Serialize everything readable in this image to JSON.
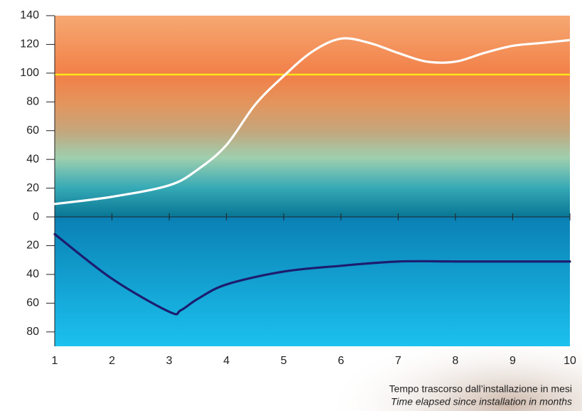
{
  "chart_data": {
    "type": "line",
    "xlim": [
      1,
      10
    ],
    "xticks": [
      1,
      2,
      3,
      4,
      5,
      6,
      7,
      8,
      9,
      10
    ],
    "ylim": [
      -90,
      140
    ],
    "yticks": [
      140,
      120,
      100,
      80,
      60,
      40,
      20,
      0,
      {
        "value": -20,
        "label": "20"
      },
      {
        "value": -40,
        "label": "40"
      },
      {
        "value": -60,
        "label": "60"
      },
      {
        "value": -80,
        "label": "80"
      }
    ],
    "reference_line": {
      "value": 99,
      "color": "#f6e61a"
    },
    "series": [
      {
        "color": "#ffffff",
        "x": [
          1,
          2,
          3,
          3.5,
          4,
          4.5,
          5,
          5.5,
          6,
          6.5,
          7,
          7.5,
          8,
          8.5,
          9,
          9.5,
          10
        ],
        "values": [
          9,
          14,
          22,
          33,
          50,
          78,
          98,
          115,
          124,
          121,
          114,
          108,
          108,
          114,
          119,
          121,
          123
        ]
      },
      {
        "color": "#1c1d6e",
        "x": [
          1,
          2,
          3,
          3.2,
          3.5,
          4,
          5,
          6,
          7,
          8,
          9,
          10
        ],
        "values": [
          -12,
          -43,
          -66,
          -65,
          -57,
          -47,
          -38,
          -34,
          -31,
          -31,
          -31,
          -31
        ]
      }
    ],
    "xlabel": "Tempo trascorso dall’installazione in mesi",
    "xlabel_en": "Time elapsed since installation in months"
  }
}
